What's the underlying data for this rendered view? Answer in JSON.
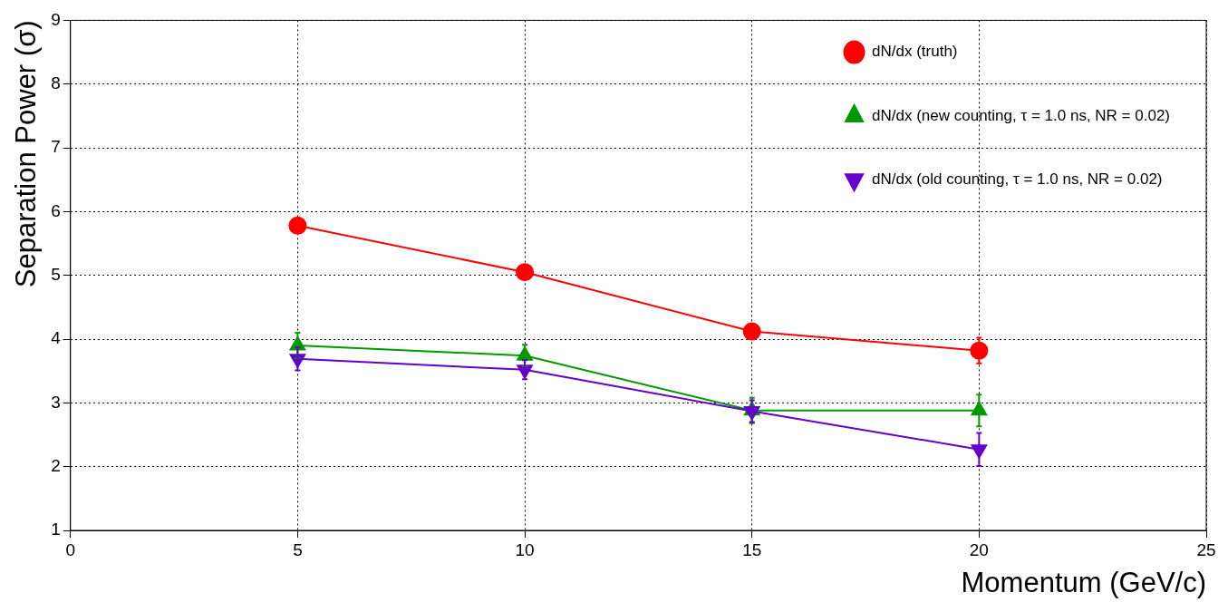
{
  "chart_data": {
    "type": "line",
    "xlabel": "Momentum (GeV/c)",
    "ylabel": "Separation Power (σ)",
    "x": [
      5,
      10,
      15,
      20
    ],
    "series": [
      {
        "name": "dN/dx (truth)",
        "color": "#ff0000",
        "marker": "circle",
        "values": [
          5.78,
          5.05,
          4.12,
          3.82
        ],
        "errors": [
          null,
          null,
          null,
          0.2
        ]
      },
      {
        "name": "dN/dx (new counting, τ = 1.0 ns, NR = 0.02)",
        "color": "#009900",
        "marker": "triangle",
        "values": [
          3.9,
          3.74,
          2.88,
          2.88
        ],
        "errors": [
          0.2,
          0.17,
          0.2,
          0.25
        ]
      },
      {
        "name": "dN/dx (old counting, τ = 1.0 ns, NR = 0.02)",
        "color": "#6600cc",
        "marker": "triangle-down",
        "values": [
          3.69,
          3.52,
          2.87,
          2.27
        ],
        "errors": [
          0.18,
          0.15,
          0.17,
          0.26
        ]
      }
    ],
    "xlim": [
      0,
      25
    ],
    "xticks": [
      0,
      5,
      10,
      15,
      20,
      25
    ],
    "ylim": [
      1,
      9
    ],
    "yticks": [
      1,
      2,
      3,
      4,
      5,
      6,
      7,
      8,
      9
    ],
    "grid": true,
    "legend": "top right",
    "line_style": "solid"
  }
}
